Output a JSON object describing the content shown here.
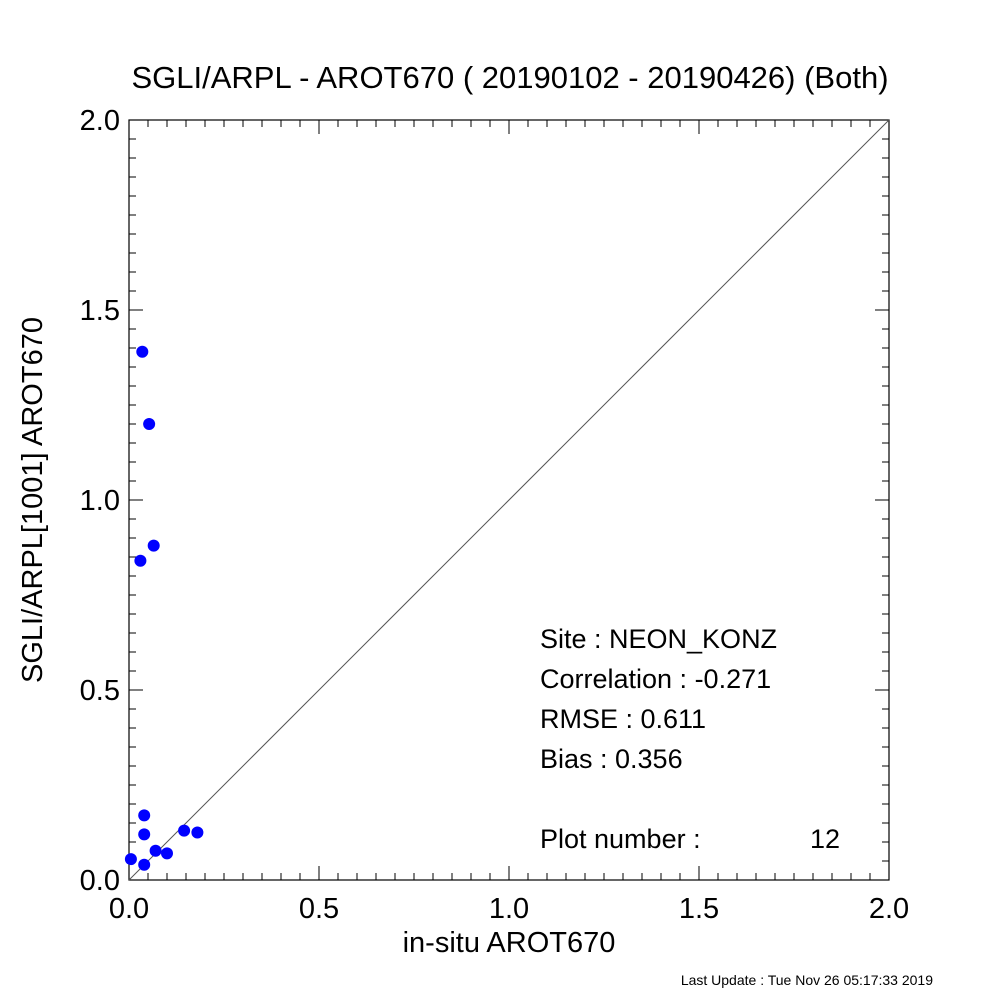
{
  "chart_data": {
    "type": "scatter",
    "title": "SGLI/ARPL - AROT670 ( 20190102 - 20190426) (Both)",
    "xlabel": "in-situ AROT670",
    "ylabel": "SGLI/ARPL[1001]    AROT670",
    "xlim": [
      0.0,
      2.0
    ],
    "ylim": [
      0.0,
      2.0
    ],
    "xticks": [
      "0.0",
      "0.5",
      "1.0",
      "1.5",
      "2.0"
    ],
    "yticks": [
      "0.0",
      "0.5",
      "1.0",
      "1.5",
      "2.0"
    ],
    "grid": false,
    "one_to_one_line": true,
    "point_color": "#0000ff",
    "points": [
      {
        "x": 0.035,
        "y": 1.39
      },
      {
        "x": 0.053,
        "y": 1.2
      },
      {
        "x": 0.065,
        "y": 0.88
      },
      {
        "x": 0.03,
        "y": 0.84
      },
      {
        "x": 0.04,
        "y": 0.17
      },
      {
        "x": 0.04,
        "y": 0.12
      },
      {
        "x": 0.145,
        "y": 0.13
      },
      {
        "x": 0.18,
        "y": 0.125
      },
      {
        "x": 0.07,
        "y": 0.077
      },
      {
        "x": 0.1,
        "y": 0.07
      },
      {
        "x": 0.005,
        "y": 0.055
      },
      {
        "x": 0.04,
        "y": 0.04
      }
    ]
  },
  "stats": {
    "site": "Site : NEON_KONZ",
    "correlation": "Correlation :   -0.271",
    "rmse": "RMSE :    0.611",
    "bias": "Bias :    0.356",
    "plot_number_label": "Plot number :",
    "plot_number_value": "12"
  },
  "footer": "Last Update : Tue Nov 26 05:17:33 2019"
}
